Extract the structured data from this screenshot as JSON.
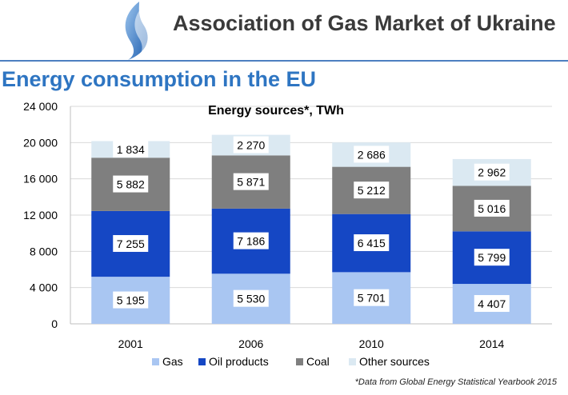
{
  "header": {
    "org_name": "Association of Gas Market of Ukraine",
    "logo_icon": "flame-swirl-icon"
  },
  "page": {
    "title": "Energy consumption in the EU",
    "footnote": "*Data from Global Energy Statistical Yearbook 2015"
  },
  "chart_data": {
    "type": "bar",
    "stacked": true,
    "title": "Energy sources*, TWh",
    "xlabel": "",
    "ylabel": "",
    "categories": [
      "2001",
      "2006",
      "2010",
      "2014"
    ],
    "ylim": [
      0,
      24000
    ],
    "yticks": [
      0,
      4000,
      8000,
      12000,
      16000,
      20000,
      24000
    ],
    "ytick_labels": [
      "0",
      "4 000",
      "8 000",
      "12 000",
      "16 000",
      "20 000",
      "24 000"
    ],
    "grid": true,
    "legend_position": "bottom",
    "series": [
      {
        "name": "Gas",
        "color": "#a9c6f2",
        "values": [
          5195,
          5530,
          5701,
          4407
        ],
        "labels": [
          "5 195",
          "5 530",
          "5 701",
          "4 407"
        ]
      },
      {
        "name": "Oil products",
        "color": "#1547c4",
        "values": [
          7255,
          7186,
          6415,
          5799
        ],
        "labels": [
          "7 255",
          "7 186",
          "6 415",
          "5 799"
        ]
      },
      {
        "name": "Coal",
        "color": "#7f7f7f",
        "values": [
          5882,
          5871,
          5212,
          5016
        ],
        "labels": [
          "5 882",
          "5 871",
          "5 212",
          "5 016"
        ]
      },
      {
        "name": "Other sources",
        "color": "#dbe9f2",
        "values": [
          1834,
          2270,
          2686,
          2962
        ],
        "labels": [
          "1 834",
          "2 270",
          "2 686",
          "2 962"
        ]
      }
    ]
  }
}
